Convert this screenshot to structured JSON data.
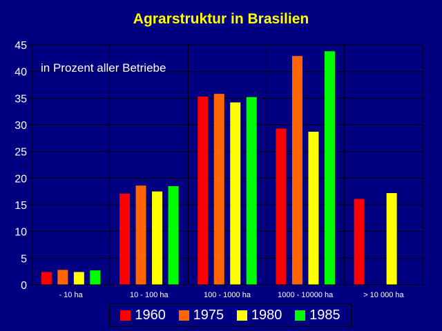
{
  "chart_data": {
    "type": "bar",
    "title": "Agrarstruktur in Brasilien",
    "annotation": "in Prozent aller Betriebe",
    "categories": [
      "- 10 ha",
      "10 - 100 ha",
      "100 - 1000 ha",
      "1000 - 10000 ha",
      "> 10 000 ha"
    ],
    "series": [
      {
        "name": "1960",
        "color": "#ff0000",
        "values": [
          2.4,
          17.1,
          35.3,
          29.3,
          16.1
        ]
      },
      {
        "name": "1975",
        "color": "#ff6600",
        "values": [
          2.8,
          18.6,
          35.8,
          42.9,
          null
        ]
      },
      {
        "name": "1980",
        "color": "#ffff00",
        "values": [
          2.4,
          17.5,
          34.2,
          28.7,
          17.2
        ]
      },
      {
        "name": "1985",
        "color": "#00ff00",
        "values": [
          2.7,
          18.5,
          35.2,
          43.8,
          null
        ]
      }
    ],
    "y_ticks": [
      "0",
      "5",
      "10",
      "15",
      "20",
      "25",
      "30",
      "35",
      "40",
      "45"
    ],
    "ylim": [
      0,
      45
    ],
    "grid": true,
    "legend_position": "bottom"
  },
  "colors": {
    "background": "#000080",
    "title": "#ffff00",
    "text": "#ffffff",
    "gridline": "#000000"
  }
}
